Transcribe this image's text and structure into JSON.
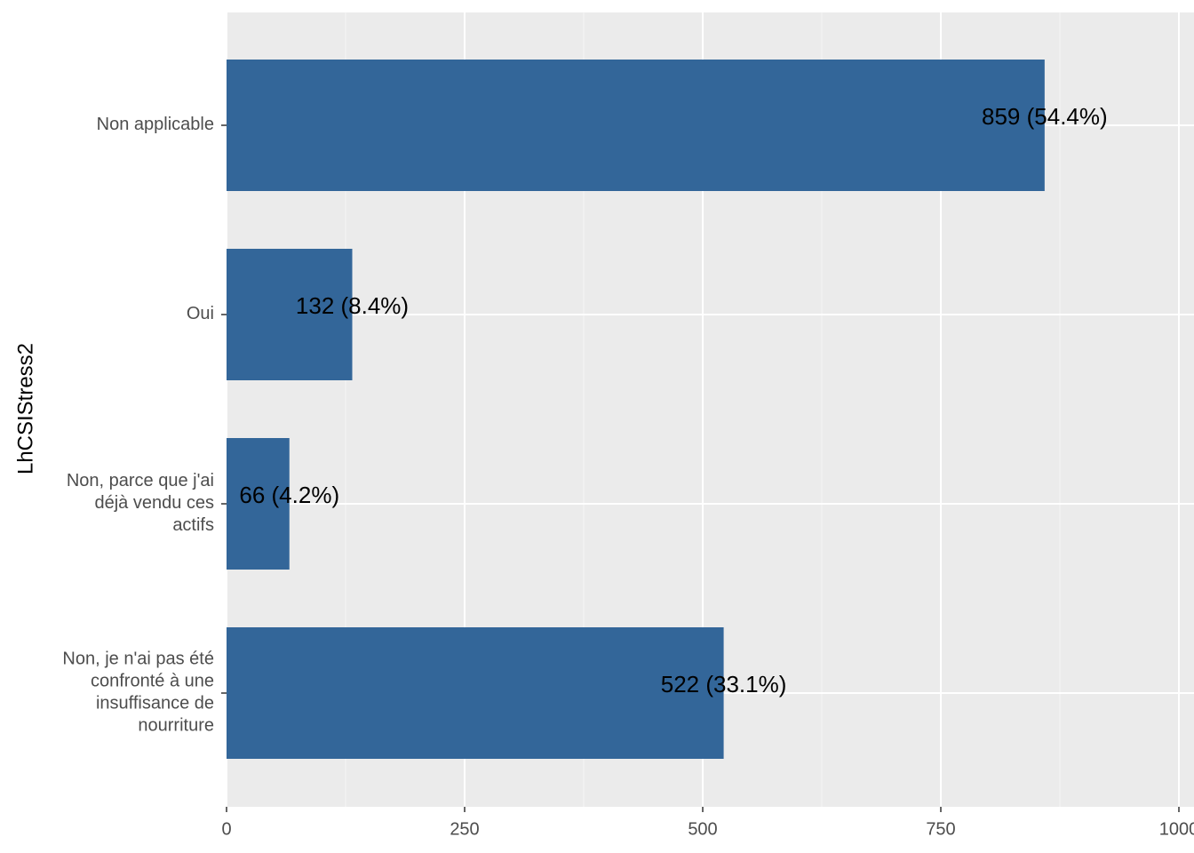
{
  "chart_data": {
    "type": "bar",
    "orientation": "horizontal",
    "y_axis_label": "LhCSIStress2",
    "categories": [
      "Non applicable",
      "Oui",
      "Non, parce que j'ai\ndéjà vendu ces\nactifs",
      "Non, je n'ai pas été\nconfronté à une\ninsuffisance de\nnourriture"
    ],
    "values": [
      859,
      132,
      66,
      522
    ],
    "value_labels": [
      "859 (54.4%)",
      "132 (8.4%)",
      "66 (4.2%)",
      "522 (33.1%)"
    ],
    "color": "#336699",
    "xlim": [
      0,
      1000
    ],
    "xticks": [
      0,
      250,
      500,
      750,
      1000
    ],
    "x_minor_ticks": [
      125,
      375,
      625,
      875
    ],
    "grid": true
  }
}
